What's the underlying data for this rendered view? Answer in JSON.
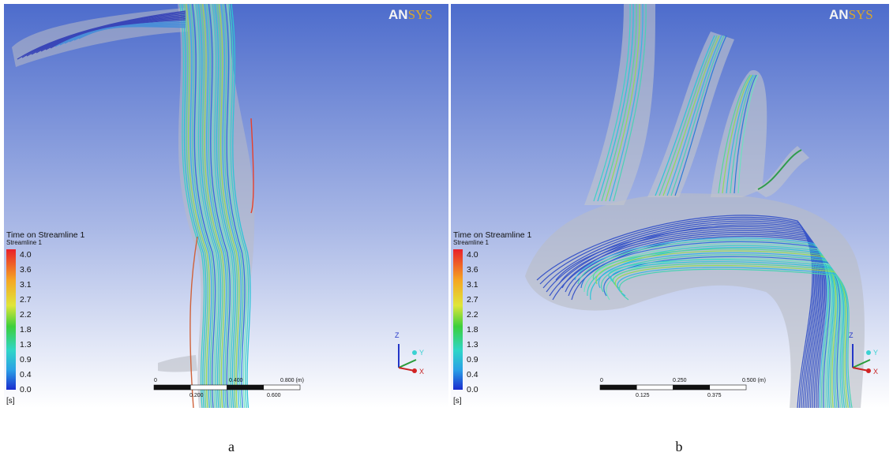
{
  "panels": [
    {
      "logo": {
        "left": "AN",
        "right": "SYS"
      },
      "legend": {
        "title": "Time on Streamline 1",
        "subtitle": "Streamline 1",
        "ticks": [
          "4.0",
          "3.6",
          "3.1",
          "2.7",
          "2.2",
          "1.8",
          "1.3",
          "0.9",
          "0.4",
          "0.0"
        ],
        "unit": "[s]"
      },
      "scale": {
        "top": [
          "0",
          "0.400",
          "0.800 (m)"
        ],
        "bottom": [
          "0.200",
          "0.600"
        ]
      },
      "axes": [
        "Z",
        "Y",
        "X"
      ],
      "caption": "a"
    },
    {
      "logo": {
        "left": "AN",
        "right": "SYS"
      },
      "legend": {
        "title": "Time on Streamline 1",
        "subtitle": "Streamline 1",
        "ticks": [
          "4.0",
          "3.6",
          "3.1",
          "2.7",
          "2.2",
          "1.8",
          "1.3",
          "0.9",
          "0.4",
          "0.0"
        ],
        "unit": "[s]"
      },
      "scale": {
        "top": [
          "0",
          "0.250",
          "0.500 (m)"
        ],
        "bottom": [
          "0.125",
          "0.375"
        ]
      },
      "axes": [
        "Z",
        "Y",
        "X"
      ],
      "caption": "b"
    }
  ]
}
